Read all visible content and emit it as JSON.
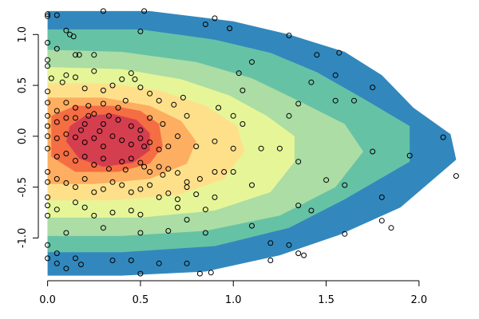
{
  "chart_data": {
    "type": "contour",
    "title": "",
    "xlabel": "",
    "ylabel": "",
    "xlim": [
      -0.05,
      2.28
    ],
    "ylim": [
      -1.42,
      1.3
    ],
    "x_ticks": [
      {
        "value": 0.0,
        "label": "0.0"
      },
      {
        "value": 0.5,
        "label": "0.5"
      },
      {
        "value": 1.0,
        "label": "1.0"
      },
      {
        "value": 1.5,
        "label": "1.5"
      },
      {
        "value": 2.0,
        "label": "2.0"
      }
    ],
    "y_ticks": [
      {
        "value": -1.0,
        "label": "-1.0"
      },
      {
        "value": -0.5,
        "label": "-0.5"
      },
      {
        "value": 0.0,
        "label": "0.0"
      },
      {
        "value": 0.5,
        "label": "0.5"
      },
      {
        "value": 1.0,
        "label": "1.0"
      }
    ],
    "levels": [
      {
        "color": "#3288bd",
        "poly": [
          [
            0,
            1.23
          ],
          [
            0.55,
            1.23
          ],
          [
            1.0,
            1.13
          ],
          [
            1.3,
            1.0
          ],
          [
            1.6,
            0.83
          ],
          [
            1.8,
            0.6
          ],
          [
            1.97,
            0.28
          ],
          [
            2.17,
            0.02
          ],
          [
            2.2,
            -0.23
          ],
          [
            1.9,
            -0.7
          ],
          [
            1.57,
            -0.97
          ],
          [
            1.25,
            -1.17
          ],
          [
            0.85,
            -1.33
          ],
          [
            0.4,
            -1.37
          ],
          [
            0,
            -1.37
          ]
        ]
      },
      {
        "color": "#66c2a5",
        "poly": [
          [
            0,
            1.05
          ],
          [
            0.5,
            1.05
          ],
          [
            0.9,
            0.95
          ],
          [
            1.2,
            0.82
          ],
          [
            1.45,
            0.63
          ],
          [
            1.7,
            0.37
          ],
          [
            1.95,
            0.1
          ],
          [
            1.95,
            -0.25
          ],
          [
            1.6,
            -0.62
          ],
          [
            1.3,
            -0.9
          ],
          [
            0.9,
            -1.08
          ],
          [
            0.4,
            -1.14
          ],
          [
            0,
            -1.14
          ]
        ]
      },
      {
        "color": "#abdda4",
        "poly": [
          [
            0,
            0.85
          ],
          [
            0.4,
            0.83
          ],
          [
            0.8,
            0.73
          ],
          [
            1.1,
            0.57
          ],
          [
            1.35,
            0.35
          ],
          [
            1.6,
            0.12
          ],
          [
            1.7,
            -0.15
          ],
          [
            1.55,
            -0.5
          ],
          [
            1.25,
            -0.78
          ],
          [
            0.85,
            -0.93
          ],
          [
            0.4,
            -0.98
          ],
          [
            0,
            -0.98
          ]
        ]
      },
      {
        "color": "#e6f598",
        "poly": [
          [
            0,
            0.68
          ],
          [
            0.4,
            0.66
          ],
          [
            0.72,
            0.56
          ],
          [
            0.98,
            0.4
          ],
          [
            1.18,
            0.2
          ],
          [
            1.33,
            0.0
          ],
          [
            1.33,
            -0.25
          ],
          [
            1.2,
            -0.55
          ],
          [
            0.9,
            -0.73
          ],
          [
            0.5,
            -0.8
          ],
          [
            0,
            -0.8
          ]
        ]
      },
      {
        "color": "#fee08b",
        "poly": [
          [
            0,
            0.52
          ],
          [
            0.33,
            0.52
          ],
          [
            0.6,
            0.45
          ],
          [
            0.85,
            0.3
          ],
          [
            1.02,
            0.1
          ],
          [
            1.06,
            -0.15
          ],
          [
            0.95,
            -0.42
          ],
          [
            0.7,
            -0.58
          ],
          [
            0.35,
            -0.63
          ],
          [
            0,
            -0.63
          ]
        ]
      },
      {
        "color": "#fdae61",
        "poly": [
          [
            0,
            0.38
          ],
          [
            0.3,
            0.38
          ],
          [
            0.55,
            0.3
          ],
          [
            0.72,
            0.15
          ],
          [
            0.8,
            -0.05
          ],
          [
            0.75,
            -0.27
          ],
          [
            0.55,
            -0.42
          ],
          [
            0.25,
            -0.47
          ],
          [
            0,
            -0.47
          ]
        ]
      },
      {
        "color": "#f46d43",
        "poly": [
          [
            0.02,
            0.2
          ],
          [
            0.15,
            0.3
          ],
          [
            0.35,
            0.3
          ],
          [
            0.5,
            0.25
          ],
          [
            0.6,
            0.12
          ],
          [
            0.62,
            -0.1
          ],
          [
            0.55,
            -0.27
          ],
          [
            0.38,
            -0.35
          ],
          [
            0.15,
            -0.35
          ],
          [
            0.02,
            -0.2
          ]
        ]
      },
      {
        "color": "#d53e4f",
        "poly": [
          [
            0.12,
            0.1
          ],
          [
            0.2,
            0.2
          ],
          [
            0.35,
            0.22
          ],
          [
            0.48,
            0.16
          ],
          [
            0.55,
            0.03
          ],
          [
            0.55,
            -0.14
          ],
          [
            0.46,
            -0.26
          ],
          [
            0.3,
            -0.3
          ],
          [
            0.17,
            -0.22
          ],
          [
            0.1,
            -0.05
          ]
        ]
      }
    ],
    "points": [
      [
        0.0,
        1.2
      ],
      [
        0.0,
        1.18
      ],
      [
        0.05,
        1.19
      ],
      [
        0.3,
        1.23
      ],
      [
        0.52,
        1.23
      ],
      [
        0.9,
        1.16
      ],
      [
        0.98,
        1.06
      ],
      [
        0.85,
        1.1
      ],
      [
        0.1,
        1.04
      ],
      [
        0.12,
        1.0
      ],
      [
        0.14,
        0.98
      ],
      [
        0.5,
        1.03
      ],
      [
        1.3,
        0.99
      ],
      [
        0.0,
        0.92
      ],
      [
        0.05,
        0.86
      ],
      [
        0.15,
        0.8
      ],
      [
        0.17,
        0.8
      ],
      [
        0.25,
        0.8
      ],
      [
        1.1,
        0.73
      ],
      [
        1.45,
        0.8
      ],
      [
        1.57,
        0.82
      ],
      [
        0.0,
        0.75
      ],
      [
        0.0,
        0.69
      ],
      [
        0.1,
        0.6
      ],
      [
        0.15,
        0.58
      ],
      [
        0.25,
        0.64
      ],
      [
        0.4,
        0.56
      ],
      [
        0.45,
        0.62
      ],
      [
        1.03,
        0.62
      ],
      [
        1.42,
        0.53
      ],
      [
        1.55,
        0.6
      ],
      [
        1.75,
        0.48
      ],
      [
        0.02,
        0.57
      ],
      [
        0.08,
        0.53
      ],
      [
        0.2,
        0.47
      ],
      [
        0.3,
        0.45
      ],
      [
        0.35,
        0.5
      ],
      [
        0.47,
        0.56
      ],
      [
        0.5,
        0.48
      ],
      [
        0.55,
        0.42
      ],
      [
        0.0,
        0.44
      ],
      [
        0.0,
        0.33
      ],
      [
        0.05,
        0.25
      ],
      [
        0.1,
        0.33
      ],
      [
        0.15,
        0.28
      ],
      [
        0.22,
        0.3
      ],
      [
        0.3,
        0.32
      ],
      [
        0.38,
        0.28
      ],
      [
        0.42,
        0.35
      ],
      [
        0.6,
        0.35
      ],
      [
        0.68,
        0.31
      ],
      [
        0.73,
        0.38
      ],
      [
        0.92,
        0.28
      ],
      [
        1.05,
        0.45
      ],
      [
        1.35,
        0.32
      ],
      [
        1.55,
        0.35
      ],
      [
        1.65,
        0.35
      ],
      [
        0.0,
        0.2
      ],
      [
        0.0,
        0.1
      ],
      [
        0.05,
        0.14
      ],
      [
        0.1,
        0.18
      ],
      [
        0.15,
        0.18
      ],
      [
        0.2,
        0.12
      ],
      [
        0.22,
        0.2
      ],
      [
        0.25,
        0.22
      ],
      [
        0.3,
        0.12
      ],
      [
        0.33,
        0.2
      ],
      [
        0.38,
        0.16
      ],
      [
        0.45,
        0.1
      ],
      [
        0.5,
        0.06
      ],
      [
        0.55,
        0.18
      ],
      [
        0.62,
        0.12
      ],
      [
        0.75,
        0.2
      ],
      [
        1.0,
        0.2
      ],
      [
        1.05,
        0.12
      ],
      [
        1.3,
        0.2
      ],
      [
        0.0,
        0.0
      ],
      [
        0.05,
        -0.02
      ],
      [
        0.1,
        0.02
      ],
      [
        0.15,
        -0.01
      ],
      [
        0.18,
        0.06
      ],
      [
        0.2,
        -0.06
      ],
      [
        0.25,
        -0.02
      ],
      [
        0.28,
        0.05
      ],
      [
        0.3,
        -0.1
      ],
      [
        0.35,
        0.0
      ],
      [
        0.4,
        -0.04
      ],
      [
        0.45,
        -0.08
      ],
      [
        0.5,
        -0.02
      ],
      [
        0.52,
        -0.1
      ],
      [
        0.55,
        -0.06
      ],
      [
        0.6,
        -0.13
      ],
      [
        0.65,
        -0.1
      ],
      [
        0.7,
        0.0
      ],
      [
        0.8,
        -0.1
      ],
      [
        0.9,
        -0.05
      ],
      [
        1.0,
        -0.12
      ],
      [
        1.15,
        -0.12
      ],
      [
        1.25,
        -0.12
      ],
      [
        1.75,
        -0.15
      ],
      [
        1.95,
        -0.19
      ],
      [
        2.13,
        -0.01
      ],
      [
        0.0,
        -0.12
      ],
      [
        0.05,
        -0.2
      ],
      [
        0.1,
        -0.17
      ],
      [
        0.15,
        -0.24
      ],
      [
        0.2,
        -0.2
      ],
      [
        0.25,
        -0.28
      ],
      [
        0.3,
        -0.22
      ],
      [
        0.33,
        -0.32
      ],
      [
        0.4,
        -0.25
      ],
      [
        0.42,
        -0.33
      ],
      [
        0.45,
        -0.22
      ],
      [
        0.5,
        -0.26
      ],
      [
        0.52,
        -0.3
      ],
      [
        0.55,
        -0.35
      ],
      [
        0.6,
        -0.3
      ],
      [
        0.62,
        -0.38
      ],
      [
        0.65,
        -0.32
      ],
      [
        0.7,
        -0.36
      ],
      [
        0.75,
        -0.45
      ],
      [
        0.82,
        -0.42
      ],
      [
        0.9,
        -0.35
      ],
      [
        0.95,
        -0.35
      ],
      [
        1.0,
        -0.35
      ],
      [
        1.1,
        -0.48
      ],
      [
        1.35,
        -0.25
      ],
      [
        1.5,
        -0.43
      ],
      [
        1.6,
        -0.48
      ],
      [
        2.2,
        -0.39
      ],
      [
        0.0,
        -0.35
      ],
      [
        0.0,
        -0.45
      ],
      [
        0.05,
        -0.42
      ],
      [
        0.1,
        -0.46
      ],
      [
        0.15,
        -0.5
      ],
      [
        0.2,
        -0.42
      ],
      [
        0.25,
        -0.55
      ],
      [
        0.3,
        -0.52
      ],
      [
        0.35,
        -0.45
      ],
      [
        0.4,
        -0.48
      ],
      [
        0.45,
        -0.55
      ],
      [
        0.5,
        -0.52
      ],
      [
        0.55,
        -0.48
      ],
      [
        0.6,
        -0.6
      ],
      [
        0.65,
        -0.56
      ],
      [
        0.7,
        -0.62
      ],
      [
        0.75,
        -0.5
      ],
      [
        0.8,
        -0.57
      ],
      [
        0.9,
        -0.6
      ],
      [
        1.35,
        -0.68
      ],
      [
        1.42,
        -0.73
      ],
      [
        1.8,
        -0.6
      ],
      [
        0.0,
        -0.6
      ],
      [
        0.0,
        -0.68
      ],
      [
        0.05,
        -0.72
      ],
      [
        0.15,
        -0.65
      ],
      [
        0.2,
        -0.7
      ],
      [
        0.25,
        -0.78
      ],
      [
        0.35,
        -0.75
      ],
      [
        0.45,
        -0.73
      ],
      [
        0.5,
        -0.77
      ],
      [
        0.7,
        -0.7
      ],
      [
        0.75,
        -0.82
      ],
      [
        0.85,
        -0.72
      ],
      [
        1.1,
        -0.88
      ],
      [
        1.8,
        -0.83
      ],
      [
        1.85,
        -0.9
      ],
      [
        0.0,
        -0.78
      ],
      [
        0.1,
        -0.95
      ],
      [
        0.3,
        -0.9
      ],
      [
        0.5,
        -0.95
      ],
      [
        0.65,
        -0.93
      ],
      [
        0.85,
        -0.95
      ],
      [
        1.2,
        -1.05
      ],
      [
        1.3,
        -1.07
      ],
      [
        1.6,
        -0.96
      ],
      [
        0.0,
        -1.07
      ],
      [
        0.05,
        -1.15
      ],
      [
        0.15,
        -1.2
      ],
      [
        0.35,
        -1.22
      ],
      [
        0.45,
        -1.22
      ],
      [
        0.6,
        -1.25
      ],
      [
        0.75,
        -1.25
      ],
      [
        1.2,
        -1.22
      ],
      [
        1.35,
        -1.15
      ],
      [
        1.38,
        -1.17
      ],
      [
        0.0,
        -1.2
      ],
      [
        0.05,
        -1.25
      ],
      [
        0.1,
        -1.3
      ],
      [
        0.18,
        -1.26
      ],
      [
        0.5,
        -1.35
      ],
      [
        0.82,
        -1.35
      ],
      [
        0.88,
        -1.34
      ]
    ]
  }
}
